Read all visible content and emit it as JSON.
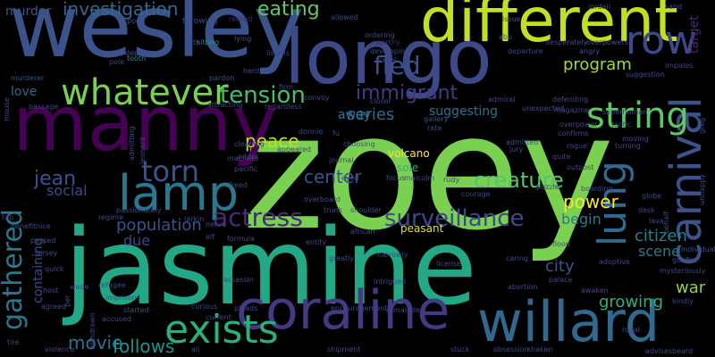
{
  "background": "#000000",
  "palette": {
    "deep_purple": "#440154",
    "purple": "#482878",
    "indigo": "#3e4989",
    "blue": "#31688e",
    "steel_blue": "#26828e",
    "teal": "#1f9e89",
    "green": "#35b779",
    "light_green": "#6ece58",
    "lime": "#b5de2b",
    "yellow": "#fde725"
  },
  "words": [
    {
      "text": "zoey",
      "color": "#7ad151"
    },
    {
      "text": "jasmine",
      "color": "#22a884"
    },
    {
      "text": "wesley",
      "color": "#3b528b"
    },
    {
      "text": "manny",
      "color": "#440154"
    },
    {
      "text": "longo",
      "color": "#3e4989"
    },
    {
      "text": "different",
      "color": "#c2df23"
    },
    {
      "text": "coraline",
      "color": "#443983"
    },
    {
      "text": "willard",
      "color": "#31688e"
    },
    {
      "text": "whatever",
      "color": "#7ad151"
    },
    {
      "text": "carnival",
      "color": "#3b528b"
    },
    {
      "text": "lamp",
      "color": "#2a788e"
    },
    {
      "text": "exists",
      "color": "#2ab07f"
    },
    {
      "text": "gathered",
      "color": "#2a788e"
    },
    {
      "text": "row",
      "color": "#3e4989"
    },
    {
      "text": "string",
      "color": "#5ec962"
    },
    {
      "text": "lung",
      "color": "#31688e"
    },
    {
      "text": "torn",
      "color": "#3b528b"
    },
    {
      "text": "tension",
      "color": "#44bf70"
    },
    {
      "text": "actress",
      "color": "#482878"
    },
    {
      "text": "surveillance",
      "color": "#3e4989"
    },
    {
      "text": "immigrant",
      "color": "#443983"
    },
    {
      "text": "fled",
      "color": "#3b528b"
    },
    {
      "text": "creature",
      "color": "#52c569"
    },
    {
      "text": "movie",
      "color": "#2c728e"
    },
    {
      "text": "follows",
      "color": "#21918c"
    },
    {
      "text": "investigation",
      "color": "#31688e"
    },
    {
      "text": "eating",
      "color": "#5ec962"
    },
    {
      "text": "population",
      "color": "#3b528b"
    },
    {
      "text": "jean",
      "color": "#3b528b"
    },
    {
      "text": "peace",
      "color": "#bddf26"
    },
    {
      "text": "center",
      "color": "#3b528b"
    },
    {
      "text": "power",
      "color": "#fde725"
    },
    {
      "text": "series",
      "color": "#31688e"
    },
    {
      "text": "program",
      "color": "#a0da39"
    },
    {
      "text": "citizen",
      "color": "#26828e"
    },
    {
      "text": "city",
      "color": "#3b528b"
    },
    {
      "text": "war",
      "color": "#86d549"
    },
    {
      "text": "growing",
      "color": "#2ab07f"
    },
    {
      "text": "scene",
      "color": "#2a788e"
    },
    {
      "text": "social",
      "color": "#3e4989"
    },
    {
      "text": "due",
      "color": "#414487"
    },
    {
      "text": "begin",
      "color": "#2a788e"
    },
    {
      "text": "away",
      "color": "#2c728e"
    },
    {
      "text": "suggesting",
      "color": "#2c728e"
    },
    {
      "text": "containing",
      "color": "#3e4989"
    },
    {
      "text": "murder",
      "color": "#3b528b"
    },
    {
      "text": "love",
      "color": "#31688e"
    },
    {
      "text": "volcano",
      "color": "#fde725"
    },
    {
      "text": "sole",
      "color": "#2ab07f"
    },
    {
      "text": "peasant",
      "color": "#dde318"
    },
    {
      "text": "target",
      "color": "#482878"
    },
    {
      "text": "throwing",
      "color": "#3b528b"
    },
    {
      "text": "retired",
      "color": "#482878"
    },
    {
      "text": "tooth",
      "color": "#21918c"
    },
    {
      "text": "lying",
      "color": "#3b528b"
    },
    {
      "text": "sitting",
      "color": "#21918c"
    },
    {
      "text": "gothic",
      "color": "#3e4989"
    },
    {
      "text": "allowed",
      "color": "#3e4989"
    },
    {
      "text": "issue",
      "color": "#3b528b"
    },
    {
      "text": "abu",
      "color": "#3b528b"
    },
    {
      "text": "ordering",
      "color": "#3e4989"
    },
    {
      "text": "worthy",
      "color": "#482878"
    },
    {
      "text": "developing",
      "color": "#3e4989"
    },
    {
      "text": "listens",
      "color": "#3e4989"
    },
    {
      "text": "cruel",
      "color": "#3e4989"
    },
    {
      "text": "jordan",
      "color": "#3e4989"
    },
    {
      "text": "sand",
      "color": "#3e4989"
    },
    {
      "text": "desperately",
      "color": "#3e4989"
    },
    {
      "text": "overpowers",
      "color": "#3b528b"
    },
    {
      "text": "angry",
      "color": "#3b528b"
    },
    {
      "text": "departure",
      "color": "#3e4989"
    },
    {
      "text": "suggestion",
      "color": "#3e4989"
    },
    {
      "text": "impales",
      "color": "#3e4989"
    },
    {
      "text": "departing",
      "color": "#3b528b"
    },
    {
      "text": "pole",
      "color": "#3e4989"
    },
    {
      "text": "pond",
      "color": "#3b528b"
    },
    {
      "text": "murderer",
      "color": "#3b528b"
    },
    {
      "text": "pardon",
      "color": "#3b528b"
    },
    {
      "text": "herd",
      "color": "#3e4989"
    },
    {
      "text": "attracting",
      "color": "#3e4989"
    },
    {
      "text": "firm",
      "color": "#3e4989"
    },
    {
      "text": "regardless",
      "color": "#3e4989"
    },
    {
      "text": "convoy",
      "color": "#3e4989"
    },
    {
      "text": "luke",
      "color": "#3e4989"
    },
    {
      "text": "closer",
      "color": "#3e4989"
    },
    {
      "text": "admiral",
      "color": "#3e4989"
    },
    {
      "text": "defending",
      "color": "#3e4989"
    },
    {
      "text": "unexpected",
      "color": "#3b528b"
    },
    {
      "text": "magazine",
      "color": "#3e4989"
    },
    {
      "text": "superhuman",
      "color": "#3e4989"
    },
    {
      "text": "gallery",
      "color": "#3b528b"
    },
    {
      "text": "rate",
      "color": "#3e4989"
    },
    {
      "text": "overpower",
      "color": "#3e4989"
    },
    {
      "text": "tactic",
      "color": "#3e4989"
    },
    {
      "text": "confirms",
      "color": "#3e4989"
    },
    {
      "text": "admitted",
      "color": "#3b528b"
    },
    {
      "text": "jury",
      "color": "#3e4989"
    },
    {
      "text": "moving",
      "color": "#3e4989"
    },
    {
      "text": "turning",
      "color": "#3e4989"
    },
    {
      "text": "rogue",
      "color": "#3e4989"
    },
    {
      "text": "quite",
      "color": "#3e4989"
    },
    {
      "text": "outpost",
      "color": "#3e4989"
    },
    {
      "text": "boarding",
      "color": "#3e4989"
    },
    {
      "text": "puzzle",
      "color": "#3e4989"
    },
    {
      "text": "choosing",
      "color": "#3e4989"
    },
    {
      "text": "journal",
      "color": "#3e4989"
    },
    {
      "text": "fu",
      "color": "#3e4989"
    },
    {
      "text": "donnie",
      "color": "#3e4989"
    },
    {
      "text": "editor",
      "color": "#3e4989"
    },
    {
      "text": "appeared",
      "color": "#3e4989"
    },
    {
      "text": "cleaning",
      "color": "#3e4989"
    },
    {
      "text": "machete",
      "color": "#3e4989"
    },
    {
      "text": "freed",
      "color": "#3e4989"
    },
    {
      "text": "pacific",
      "color": "#3e4989"
    },
    {
      "text": "eyed",
      "color": "#3e4989"
    },
    {
      "text": "focus",
      "color": "#3e4989"
    },
    {
      "text": "malcolm",
      "color": "#3e4989"
    },
    {
      "text": "rudy",
      "color": "#3e4989"
    },
    {
      "text": "courage",
      "color": "#3e4989"
    },
    {
      "text": "overboard",
      "color": "#3e4989"
    },
    {
      "text": "trunk",
      "color": "#3e4989"
    },
    {
      "text": "shoulder",
      "color": "#3e4989"
    },
    {
      "text": "african",
      "color": "#3e4989"
    },
    {
      "text": "formula",
      "color": "#3e4989"
    },
    {
      "text": "entity",
      "color": "#3e4989"
    },
    {
      "text": "narrowly",
      "color": "#3e4989"
    },
    {
      "text": "greatly",
      "color": "#3e4989"
    },
    {
      "text": "intrigued",
      "color": "#3e4989"
    },
    {
      "text": "license",
      "color": "#3e4989"
    },
    {
      "text": "encouragement",
      "color": "#3e4989"
    },
    {
      "text": "remainder",
      "color": "#3e4989"
    },
    {
      "text": "obsession",
      "color": "#3e4989"
    },
    {
      "text": "shaken",
      "color": "#3e4989"
    },
    {
      "text": "stuck",
      "color": "#3e4989"
    },
    {
      "text": "shipment",
      "color": "#3e4989"
    },
    {
      "text": "ali",
      "color": "#3e4989"
    },
    {
      "text": "pleads",
      "color": "#3e4989"
    },
    {
      "text": "curious",
      "color": "#3e4989"
    },
    {
      "text": "current",
      "color": "#3e4989"
    },
    {
      "text": "started",
      "color": "#3e4989"
    },
    {
      "text": "accused",
      "color": "#3e4989"
    },
    {
      "text": "violence",
      "color": "#3e4989"
    },
    {
      "text": "withdrawn",
      "color": "#3e4989"
    },
    {
      "text": "tire",
      "color": "#3e4989"
    },
    {
      "text": "agreed",
      "color": "#3e4989"
    },
    {
      "text": "host",
      "color": "#3e4989"
    },
    {
      "text": "per",
      "color": "#3e4989"
    },
    {
      "text": "wade",
      "color": "#3e4989"
    },
    {
      "text": "imprisons",
      "color": "#3e4989"
    },
    {
      "text": "refugee",
      "color": "#3e4989"
    },
    {
      "text": "quick",
      "color": "#3e4989"
    },
    {
      "text": "jersey",
      "color": "#3e4989"
    },
    {
      "text": "passed",
      "color": "#3e4989"
    },
    {
      "text": "nice",
      "color": "#3e4989"
    },
    {
      "text": "tap",
      "color": "#3e4989"
    },
    {
      "text": "benefit",
      "color": "#3e4989"
    },
    {
      "text": "mouse",
      "color": "#3e4989"
    },
    {
      "text": "passage",
      "color": "#3e4989"
    },
    {
      "text": "admitting",
      "color": "#3e4989"
    },
    {
      "text": "leonard",
      "color": "#3e4989"
    },
    {
      "text": "regime",
      "color": "#3e4989"
    },
    {
      "text": "passionately",
      "color": "#3e4989"
    },
    {
      "text": "larkin",
      "color": "#3e4989"
    },
    {
      "text": "elf",
      "color": "#3e4989"
    },
    {
      "text": "nerve",
      "color": "#3e4989"
    },
    {
      "text": "assassin",
      "color": "#3e4989"
    },
    {
      "text": "flood",
      "color": "#3e4989"
    },
    {
      "text": "caring",
      "color": "#3e4989"
    },
    {
      "text": "adoptive",
      "color": "#3e4989"
    },
    {
      "text": "palace",
      "color": "#3e4989"
    },
    {
      "text": "abortion",
      "color": "#3e4989"
    },
    {
      "text": "awaken",
      "color": "#3e4989"
    },
    {
      "text": "kindly",
      "color": "#3e4989"
    },
    {
      "text": "behalf",
      "color": "#3e4989"
    },
    {
      "text": "desk",
      "color": "#3e4989"
    },
    {
      "text": "globe",
      "color": "#3e4989"
    },
    {
      "text": "lava",
      "color": "#3e4989"
    },
    {
      "text": "individual",
      "color": "#3e4989"
    },
    {
      "text": "gunfire",
      "color": "#3e4989"
    },
    {
      "text": "mysteriously",
      "color": "#3e4989"
    },
    {
      "text": "unhappy",
      "color": "#3e4989"
    },
    {
      "text": "beard",
      "color": "#3e4989"
    },
    {
      "text": "advises",
      "color": "#3e4989"
    },
    {
      "text": "royal",
      "color": "#3e4989"
    },
    {
      "text": "greg",
      "color": "#3e4989"
    }
  ]
}
